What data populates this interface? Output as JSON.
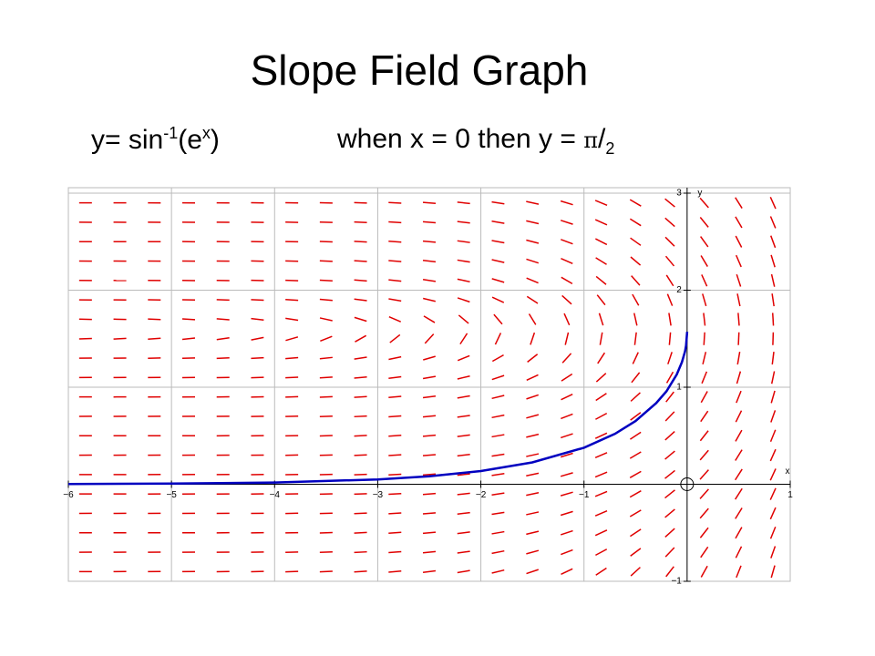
{
  "title": "Slope Field Graph",
  "equation": {
    "lead": "y= sin",
    "sup": "-1",
    "mid": "(e",
    "sup2": "x",
    "end": ")"
  },
  "condition": {
    "lead": "when x = 0 then y = ",
    "pi": "π",
    "slash": "/",
    "sub": "2"
  },
  "chart_data": {
    "type": "line",
    "x_label": "x",
    "y_label": "y",
    "xlim": [
      -6,
      1
    ],
    "ylim": [
      -1,
      3
    ],
    "xticks": [
      {
        "value": -6,
        "label": "−6"
      },
      {
        "value": -5,
        "label": "−5"
      },
      {
        "value": -4,
        "label": "−4"
      },
      {
        "value": -3,
        "label": "−3"
      },
      {
        "value": -2,
        "label": "−2"
      },
      {
        "value": -1,
        "label": "−1"
      },
      1
    ],
    "yticks": [
      {
        "value": -1,
        "label": "−1"
      },
      1,
      2,
      3
    ],
    "grid": true,
    "field_color": "#e00000",
    "series": [
      {
        "color": "#0000c0",
        "x": [
          -6,
          -5,
          -4,
          -3,
          -2.5,
          -2,
          -1.5,
          -1,
          -0.7,
          -0.5,
          -0.3,
          -0.2,
          -0.1,
          -0.05,
          -0.02,
          -0.01,
          0
        ],
        "values": [
          0.0025,
          0.0067,
          0.0183,
          0.0498,
          0.0822,
          0.1357,
          0.225,
          0.3767,
          0.5196,
          0.6515,
          0.8358,
          0.9582,
          1.1313,
          1.2594,
          1.3697,
          1.4293,
          1.5708
        ]
      }
    ]
  }
}
